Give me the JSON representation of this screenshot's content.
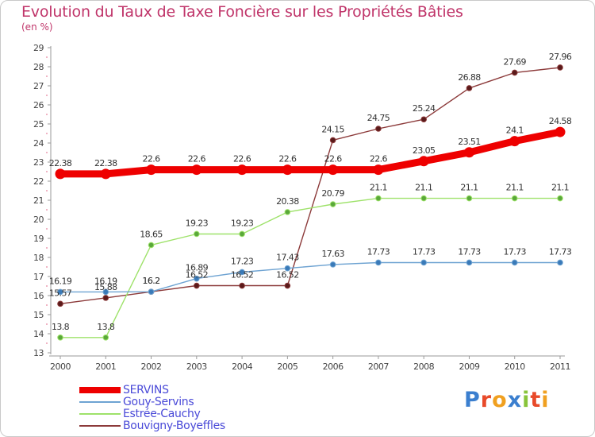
{
  "chart_data": {
    "type": "line",
    "title": "Evolution du Taux de Taxe Foncière sur les Propriétés Bâties",
    "unit_label": "(en %)",
    "xlabel": "",
    "ylabel": "",
    "categories": [
      "2000",
      "2001",
      "2002",
      "2003",
      "2004",
      "2005",
      "2006",
      "2007",
      "2008",
      "2009",
      "2010",
      "2011"
    ],
    "ylim": [
      13,
      29
    ],
    "yticks": [
      "13",
      "14",
      "15",
      "16",
      "17",
      "18",
      "19",
      "20",
      "21",
      "22",
      "23",
      "24",
      "25",
      "26",
      "27",
      "28",
      "29"
    ],
    "grid": false,
    "legend_position": "bottom-left",
    "series": [
      {
        "name": "SERVINS",
        "color": "#ee0000",
        "values": [
          22.38,
          22.38,
          22.6,
          22.6,
          22.6,
          22.6,
          22.6,
          22.6,
          23.05,
          23.51,
          24.1,
          24.58
        ],
        "labels": [
          "22.38",
          "22.38",
          "22.6",
          "22.6",
          "22.6",
          "22.6",
          "22.6",
          "22.6",
          "23.05",
          "23.51",
          "24.1",
          "24.58"
        ]
      },
      {
        "name": "Gouy-Servins",
        "color": "#6ea3d2",
        "values": [
          16.19,
          16.19,
          16.2,
          16.89,
          17.23,
          17.43,
          17.63,
          17.73,
          17.73,
          17.73,
          17.73,
          17.73
        ],
        "labels": [
          "16.19",
          "16.19",
          "16.2",
          "16.89",
          "17.23",
          "17.43",
          "17.63",
          "17.73",
          "17.73",
          "17.73",
          "17.73",
          "17.73"
        ]
      },
      {
        "name": "Estrée-Cauchy",
        "color": "#9ee26a",
        "values": [
          13.8,
          13.8,
          18.65,
          19.23,
          19.23,
          20.38,
          20.79,
          21.1,
          21.1,
          21.1,
          21.1,
          21.1
        ],
        "labels": [
          "13.8",
          "13.8",
          "18.65",
          "19.23",
          "19.23",
          "20.38",
          "20.79",
          "21.1",
          "21.1",
          "21.1",
          "21.1",
          "21.1"
        ]
      },
      {
        "name": "Bouvigny-Boyeffles",
        "color": "#8c3a3a",
        "values": [
          15.57,
          15.88,
          16.2,
          16.52,
          16.52,
          16.52,
          24.15,
          24.75,
          25.24,
          26.88,
          27.69,
          27.96
        ],
        "labels": [
          "15.57",
          "15.88",
          "16.2",
          "16.52",
          "16.52",
          "16.52",
          "24.15",
          "24.75",
          "25.24",
          "26.88",
          "27.69",
          "27.96"
        ]
      }
    ]
  },
  "logo": {
    "text": "Proxiti"
  }
}
